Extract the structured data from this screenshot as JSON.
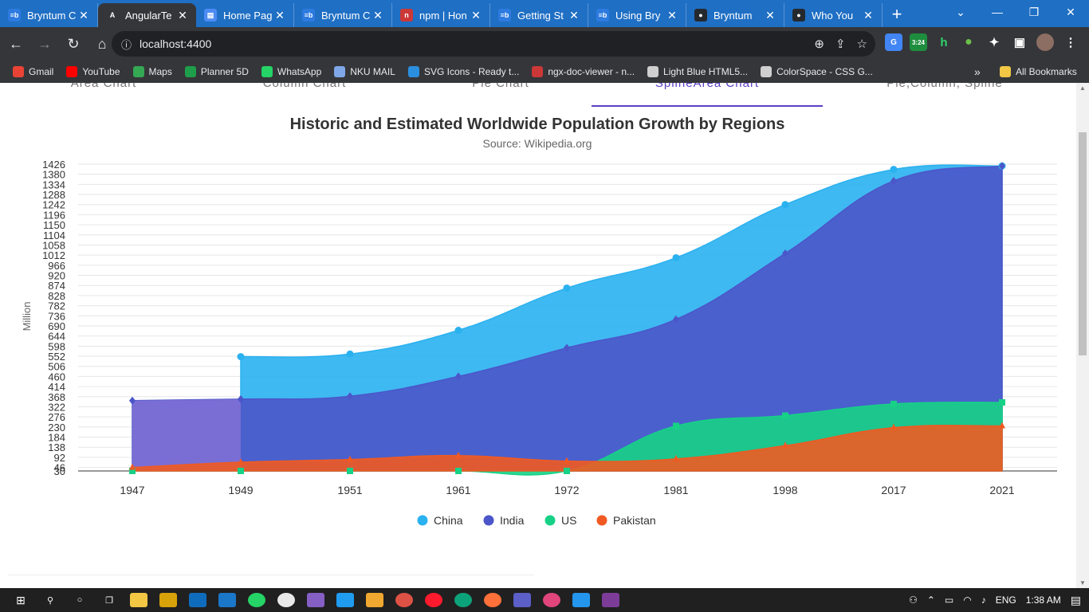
{
  "browser": {
    "tabs": [
      {
        "label": "Bryntum C",
        "icon": "bryntum-icon",
        "color": "#2d7be0",
        "glyph": "≡b"
      },
      {
        "label": "AngularTe",
        "icon": "angular-icon",
        "color": "#35363a",
        "glyph": "A",
        "active": true
      },
      {
        "label": "Home Pag",
        "icon": "document-icon",
        "color": "#4c8bf5",
        "glyph": "▤"
      },
      {
        "label": "Bryntum C",
        "icon": "bryntum-icon",
        "color": "#2d7be0",
        "glyph": "≡b"
      },
      {
        "label": "npm | Hon",
        "icon": "npm-icon",
        "color": "#cb3837",
        "glyph": "n"
      },
      {
        "label": "Getting St",
        "icon": "bryntum-icon",
        "color": "#2d7be0",
        "glyph": "≡b"
      },
      {
        "label": "Using Bry",
        "icon": "bryntum-icon",
        "color": "#2d7be0",
        "glyph": "≡b"
      },
      {
        "label": "Bryntum",
        "icon": "github-icon",
        "color": "#24292e",
        "glyph": "●"
      },
      {
        "label": "Who You",
        "icon": "github-icon",
        "color": "#24292e",
        "glyph": "●"
      }
    ],
    "url": "localhost:4400",
    "new_tab": "+",
    "bookmarks": [
      {
        "label": "Gmail",
        "color": "#ea4335"
      },
      {
        "label": "YouTube",
        "color": "#ff0000"
      },
      {
        "label": "Maps",
        "color": "#34a853"
      },
      {
        "label": "Planner 5D",
        "color": "#1e9e4a"
      },
      {
        "label": "WhatsApp",
        "color": "#25d366"
      },
      {
        "label": "NKU MAIL",
        "color": "#7fa7e8"
      },
      {
        "label": "SVG Icons - Ready t...",
        "color": "#2b8fe0"
      },
      {
        "label": "ngx-doc-viewer - n...",
        "color": "#cb3837"
      },
      {
        "label": "Light Blue HTML5...",
        "color": "#cfcfcf"
      },
      {
        "label": "ColorSpace - CSS G...",
        "color": "#cfcfcf"
      }
    ],
    "all_bookmarks": "All Bookmarks",
    "ext_badge": "3:24"
  },
  "chart_tabs": [
    {
      "label": "Area Chart"
    },
    {
      "label": "Column Chart"
    },
    {
      "label": "Pie Chart"
    },
    {
      "label": "SplineArea Chart",
      "active": true
    },
    {
      "label": "Pie,Column, Spline"
    }
  ],
  "chart_data": {
    "type": "area",
    "title": "Historic and Estimated Worldwide Population Growth by Regions",
    "subtitle": "Source: Wikipedia.org",
    "ylabel": "Million",
    "xlabel": "",
    "categories": [
      "1947",
      "1949",
      "1951",
      "1961",
      "1972",
      "1981",
      "1998",
      "2017",
      "2021"
    ],
    "yticks": [
      30,
      46,
      92,
      138,
      184,
      230,
      276,
      322,
      368,
      414,
      460,
      506,
      552,
      598,
      644,
      690,
      736,
      782,
      828,
      874,
      920,
      966,
      1012,
      1058,
      1104,
      1150,
      1196,
      1242,
      1288,
      1334,
      1380,
      1426
    ],
    "ylim": [
      30,
      1426
    ],
    "grid": true,
    "legend_position": "bottom",
    "series": [
      {
        "name": "China",
        "color": "#2ab1f0",
        "values": [
          null,
          550,
          562,
          670,
          862,
          1000,
          1242,
          1402,
          1418
        ]
      },
      {
        "name": "India",
        "color": "#4b56c9",
        "values": [
          350,
          357,
          370,
          460,
          590,
          720,
          1020,
          1350,
          1418
        ]
      },
      {
        "name": "US",
        "color": "#17d186",
        "values": [
          30,
          30,
          30,
          30,
          30,
          235,
          282,
          335,
          342
        ]
      },
      {
        "name": "Pakistan",
        "color": "#f05a22",
        "values": [
          46,
          70,
          82,
          100,
          75,
          85,
          145,
          227,
          235
        ]
      }
    ]
  },
  "taskbar": {
    "language": "ENG",
    "time": "1:38 AM"
  }
}
